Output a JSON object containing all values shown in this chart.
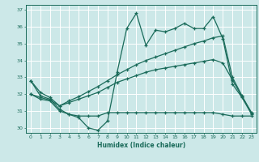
{
  "xlabel": "Humidex (Indice chaleur)",
  "bg_color": "#cce8e8",
  "grid_color": "#ffffff",
  "line_color": "#1a6b5a",
  "xlim": [
    -0.5,
    23.5
  ],
  "ylim": [
    29.7,
    37.3
  ],
  "xticks": [
    0,
    1,
    2,
    3,
    4,
    5,
    6,
    7,
    8,
    9,
    10,
    11,
    12,
    13,
    14,
    15,
    16,
    17,
    18,
    19,
    20,
    21,
    22,
    23
  ],
  "yticks": [
    30,
    31,
    32,
    33,
    34,
    35,
    36,
    37
  ],
  "line1_x": [
    0,
    1,
    2,
    3,
    4,
    5,
    6,
    7,
    8,
    9,
    10,
    11,
    12,
    13,
    14,
    15,
    16,
    17,
    18,
    19,
    20,
    21,
    22,
    23
  ],
  "line1_y": [
    32.8,
    31.9,
    31.7,
    31.1,
    30.8,
    30.6,
    30.0,
    29.85,
    30.4,
    33.3,
    35.9,
    36.8,
    34.9,
    35.8,
    35.7,
    35.9,
    36.2,
    35.9,
    35.9,
    36.6,
    35.3,
    32.6,
    31.8,
    30.8
  ],
  "line2_x": [
    0,
    1,
    2,
    3,
    4,
    5,
    6,
    7,
    8,
    9,
    10,
    11,
    12,
    13,
    14,
    15,
    16,
    17,
    18,
    19,
    20,
    21,
    22,
    23
  ],
  "line2_y": [
    32.0,
    31.7,
    31.6,
    31.0,
    30.8,
    30.7,
    30.7,
    30.7,
    30.9,
    30.9,
    30.9,
    30.9,
    30.9,
    30.9,
    30.9,
    30.9,
    30.9,
    30.9,
    30.9,
    30.9,
    30.8,
    30.7,
    30.7,
    30.7
  ],
  "line3_x": [
    0,
    1,
    2,
    3,
    4,
    5,
    6,
    7,
    8,
    9,
    10,
    11,
    12,
    13,
    14,
    15,
    16,
    17,
    18,
    19,
    20,
    21,
    22,
    23
  ],
  "line3_y": [
    32.0,
    31.8,
    31.65,
    31.3,
    31.5,
    31.7,
    31.9,
    32.1,
    32.4,
    32.7,
    32.9,
    33.1,
    33.3,
    33.45,
    33.55,
    33.65,
    33.75,
    33.85,
    33.95,
    34.05,
    33.85,
    32.85,
    31.85,
    30.9
  ],
  "line4_x": [
    0,
    1,
    2,
    3,
    4,
    5,
    6,
    7,
    8,
    9,
    10,
    11,
    12,
    13,
    14,
    15,
    16,
    17,
    18,
    19,
    20,
    21,
    22,
    23
  ],
  "line4_y": [
    32.8,
    32.1,
    31.8,
    31.3,
    31.6,
    31.85,
    32.15,
    32.45,
    32.8,
    33.15,
    33.45,
    33.75,
    34.0,
    34.2,
    34.4,
    34.6,
    34.8,
    35.0,
    35.15,
    35.35,
    35.45,
    33.0,
    31.9,
    30.85
  ]
}
